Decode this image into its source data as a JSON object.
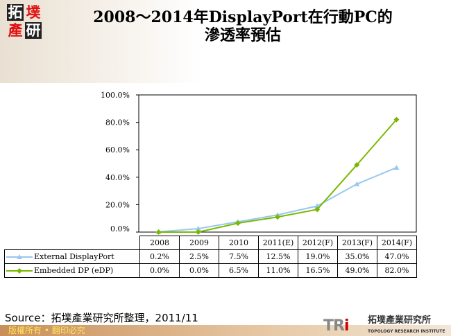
{
  "logo": {
    "chars": [
      "拓",
      "墣",
      "產",
      "研"
    ]
  },
  "title": {
    "line1": "2008～2014年DisplayPort在行動PC的",
    "line2": "滲透率預估"
  },
  "chart_data": {
    "type": "line",
    "categories": [
      "2008",
      "2009",
      "2010",
      "2011(E)",
      "2012(F)",
      "2013(F)",
      "2014(F)"
    ],
    "ylim": [
      0,
      100
    ],
    "yticks": [
      "0.0%",
      "20.0%",
      "40.0%",
      "60.0%",
      "80.0%",
      "100.0%"
    ],
    "grid": false,
    "legend": "table-left",
    "series": [
      {
        "name": "External DisplayPort",
        "values": [
          0.2,
          2.5,
          7.5,
          12.5,
          19.0,
          35.0,
          47.0
        ],
        "labels": [
          "0.2%",
          "2.5%",
          "7.5%",
          "12.5%",
          "19.0%",
          "35.0%",
          "47.0%"
        ],
        "color": "#99c7f0",
        "marker": "triangle"
      },
      {
        "name": "Embedded DP (eDP)",
        "values": [
          0.0,
          0.0,
          6.5,
          11.0,
          16.5,
          49.0,
          82.0
        ],
        "labels": [
          "0.0%",
          "0.0%",
          "6.5%",
          "11.0%",
          "16.5%",
          "49.0%",
          "82.0%"
        ],
        "color": "#7ab800",
        "marker": "diamond"
      }
    ]
  },
  "source": "Source：拓墣產業研究所整理，2011/11",
  "footer": {
    "copyright": "版權所有 • 翻印必究",
    "brand_tr": "TR",
    "brand_i": "i",
    "brand_cn": "拓墣產業研究所",
    "brand_en": "TOPOLOGY RESEARCH INSTITUTE"
  }
}
